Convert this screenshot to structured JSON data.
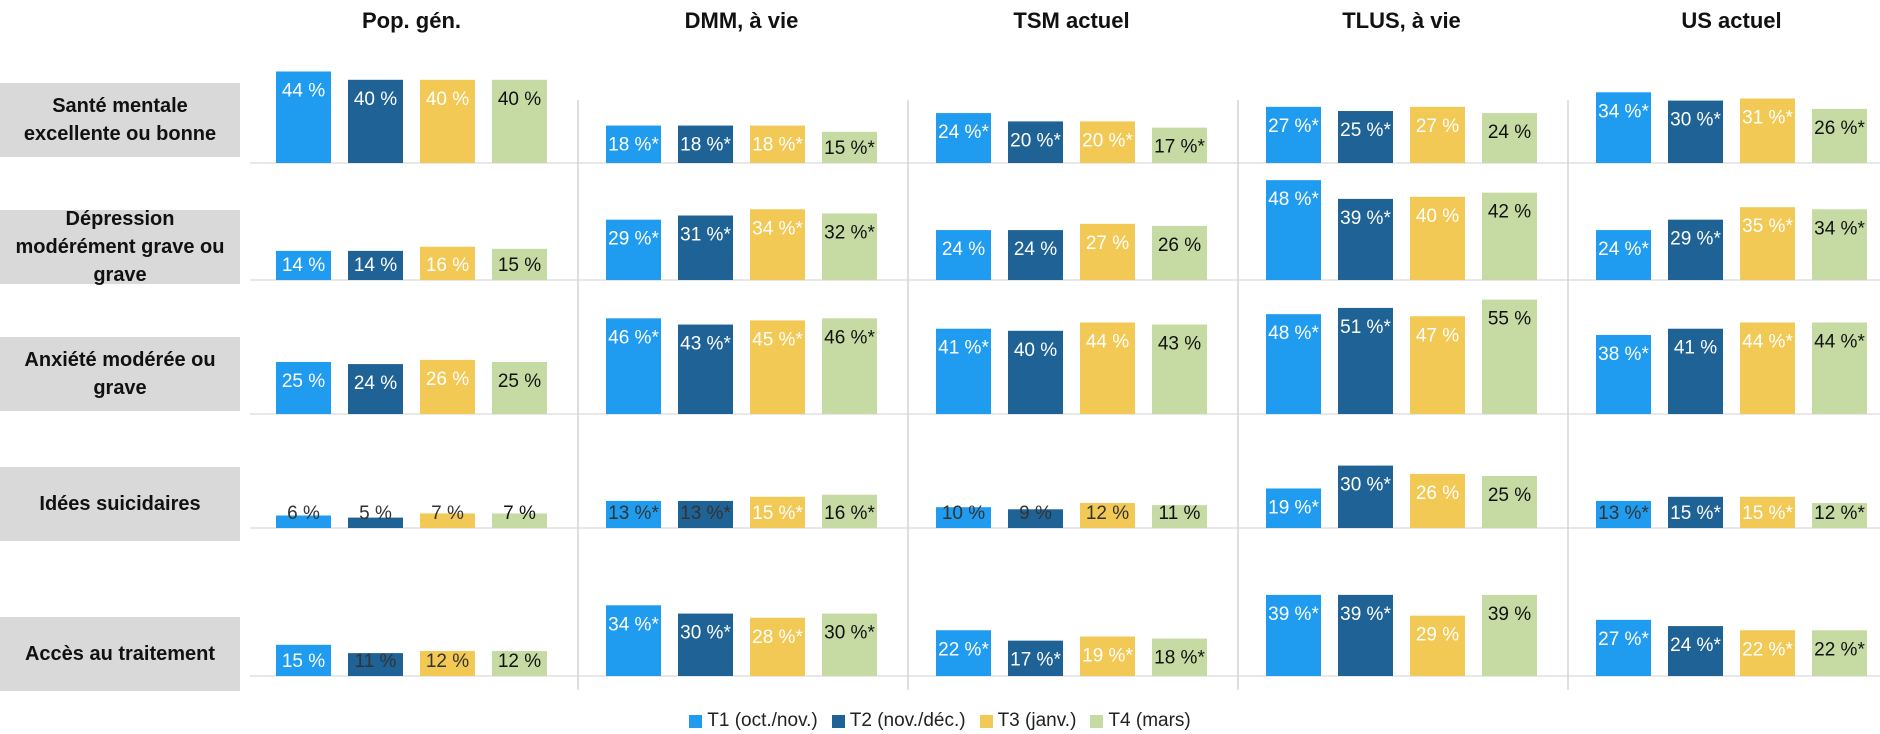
{
  "chart_data": {
    "type": "bar",
    "columns": [
      "Pop. gén.",
      "DMM, à vie",
      "TSM actuel",
      "TLUS, à vie",
      "US actuel"
    ],
    "rows": [
      "Santé mentale excellente ou bonne",
      "Dépression modérément grave ou grave",
      "Anxiété modérée ou grave",
      "Idées suicidaires",
      "Accès au traitement"
    ],
    "series": [
      {
        "name": "T1 (oct./nov.)",
        "color": "#1f9cf0",
        "values": [
          [
            44,
            18,
            24,
            27,
            34
          ],
          [
            14,
            29,
            24,
            48,
            24
          ],
          [
            25,
            46,
            41,
            48,
            38
          ],
          [
            6,
            13,
            10,
            19,
            13
          ],
          [
            15,
            34,
            22,
            39,
            27
          ]
        ],
        "value_labels": [
          [
            "44 %",
            "18 %*",
            "24 %*",
            "27 %*",
            "34 %*"
          ],
          [
            "14 %",
            "29 %*",
            "24 %",
            "48 %*",
            "24 %*"
          ],
          [
            "25 %",
            "46 %*",
            "41 %*",
            "48 %*",
            "38 %*"
          ],
          [
            "6 %",
            "13 %*",
            "10 %",
            "19 %*",
            "13 %*"
          ],
          [
            "15 %",
            "34 %*",
            "22 %*",
            "39 %*",
            "27 %*"
          ]
        ]
      },
      {
        "name": "T2 (nov./déc.)",
        "color": "#1f6396",
        "values": [
          [
            40,
            18,
            20,
            25,
            30
          ],
          [
            14,
            31,
            24,
            39,
            29
          ],
          [
            24,
            43,
            40,
            51,
            41
          ],
          [
            5,
            13,
            9,
            30,
            15
          ],
          [
            11,
            30,
            17,
            39,
            24
          ]
        ],
        "value_labels": [
          [
            "40 %",
            "18 %*",
            "20 %*",
            "25 %*",
            "30 %*"
          ],
          [
            "14 %",
            "31 %*",
            "24 %",
            "39 %*",
            "29 %*"
          ],
          [
            "24 %",
            "43 %*",
            "40 %",
            "51 %*",
            "41 %"
          ],
          [
            "5 %",
            "13 %*",
            "9 %",
            "30 %*",
            "15 %*"
          ],
          [
            "11 %",
            "30 %*",
            "17 %*",
            "39 %*",
            "24 %*"
          ]
        ]
      },
      {
        "name": "T3 (janv.)",
        "color": "#f2c955",
        "values": [
          [
            40,
            18,
            20,
            27,
            31
          ],
          [
            16,
            34,
            27,
            40,
            35
          ],
          [
            26,
            45,
            44,
            47,
            44
          ],
          [
            7,
            15,
            12,
            26,
            15
          ],
          [
            12,
            28,
            19,
            29,
            22
          ]
        ],
        "value_labels": [
          [
            "40 %",
            "18 %*",
            "20 %*",
            "27 %",
            "31 %*"
          ],
          [
            "16 %",
            "34 %*",
            "27 %",
            "40 %",
            "35 %*"
          ],
          [
            "26 %",
            "45 %*",
            "44 %",
            "47 %",
            "44 %*"
          ],
          [
            "7 %",
            "15 %*",
            "12 %",
            "26 %",
            "15 %*"
          ],
          [
            "12 %",
            "28 %*",
            "19 %*",
            "29 %",
            "22 %*"
          ]
        ]
      },
      {
        "name": "T4 (mars)",
        "color": "#c6dba3",
        "values": [
          [
            40,
            15,
            17,
            24,
            26
          ],
          [
            15,
            32,
            26,
            42,
            34
          ],
          [
            25,
            46,
            43,
            55,
            44
          ],
          [
            7,
            16,
            11,
            25,
            12
          ],
          [
            12,
            30,
            18,
            39,
            22
          ]
        ],
        "value_labels": [
          [
            "40 %",
            "15 %*",
            "17 %*",
            "24 %",
            "26 %*"
          ],
          [
            "15 %",
            "32 %*",
            "26 %",
            "42 %",
            "34 %*"
          ],
          [
            "25 %",
            "46 %*",
            "43 %",
            "55 %",
            "44 %*"
          ],
          [
            "7 %",
            "16 %*",
            "11 %",
            "25 %",
            "12 %*"
          ],
          [
            "12 %",
            "30 %*",
            "18 %*",
            "39 %",
            "22 %*"
          ]
        ]
      }
    ]
  }
}
